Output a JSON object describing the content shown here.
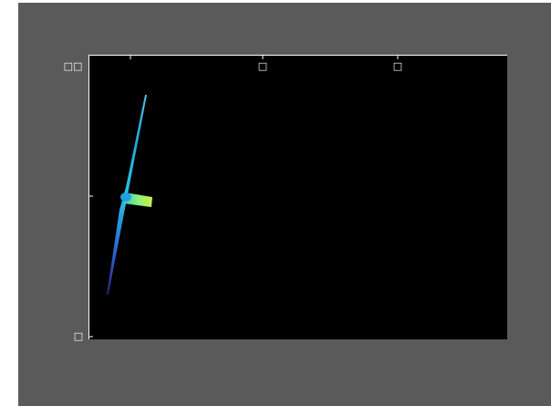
{
  "axes": {
    "y_tick_labels": [
      "□□",
      "□"
    ],
    "x_tick_labels": [
      "□",
      "□"
    ]
  }
}
